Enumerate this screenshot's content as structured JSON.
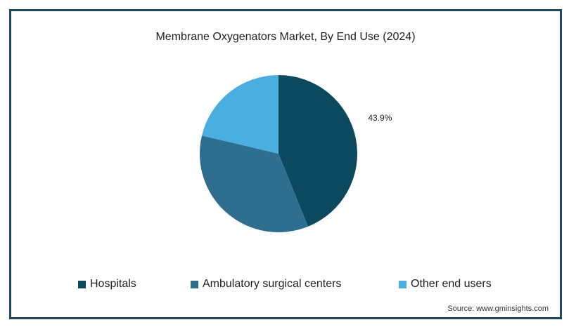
{
  "chart_data": {
    "type": "pie",
    "title": "Membrane Oxygenators Market, By End Use (2024)",
    "categories": [
      "Hospitals",
      "Ambulatory surgical centers",
      "Other end users"
    ],
    "values": [
      43.9,
      34.8,
      21.3
    ],
    "colors": [
      "#0b4a5e",
      "#2e6e8e",
      "#4aaee0"
    ],
    "data_labels": [
      "43.9%",
      "",
      ""
    ],
    "legend_position": "bottom"
  },
  "source": "Source: www.gminsights.com"
}
